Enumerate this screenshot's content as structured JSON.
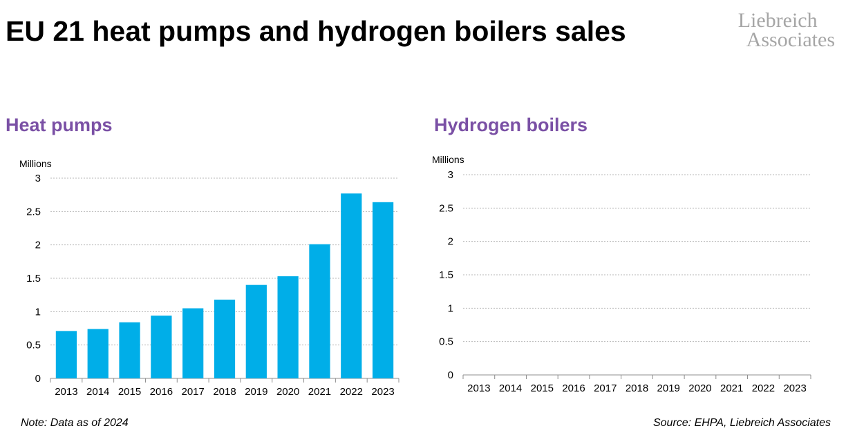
{
  "header": {
    "title": "EU 21 heat pumps and hydrogen boilers sales",
    "logo_line1": "Liebreich",
    "logo_line2": "Associates"
  },
  "colors": {
    "bar": "#00aee8",
    "panel_title": "#7a50a5",
    "gridline": "#b7b7b7",
    "axis": "#8c8c8c"
  },
  "chart_data": [
    {
      "type": "bar",
      "title": "Heat pumps",
      "unit_label": "Millions",
      "categories": [
        "2013",
        "2014",
        "2015",
        "2016",
        "2017",
        "2018",
        "2019",
        "2020",
        "2021",
        "2022",
        "2023"
      ],
      "values": [
        0.71,
        0.74,
        0.84,
        0.94,
        1.05,
        1.18,
        1.4,
        1.53,
        2.01,
        2.77,
        2.64
      ],
      "yticks": [
        "0",
        "0.5",
        "1",
        "1.5",
        "2",
        "2.5",
        "3"
      ],
      "ylim": [
        0,
        3
      ],
      "grid": true
    },
    {
      "type": "bar",
      "title": "Hydrogen boilers",
      "unit_label": "Millions",
      "categories": [
        "2013",
        "2014",
        "2015",
        "2016",
        "2017",
        "2018",
        "2019",
        "2020",
        "2021",
        "2022",
        "2023"
      ],
      "values": [
        0,
        0,
        0,
        0,
        0,
        0,
        0,
        0,
        0,
        0,
        0
      ],
      "yticks": [
        "0",
        "0.5",
        "1",
        "1.5",
        "2",
        "2.5",
        "3"
      ],
      "ylim": [
        0,
        3
      ],
      "grid": true
    }
  ],
  "footer": {
    "note": "Note: Data as of 2024",
    "source": "Source: EHPA, Liebreich Associates"
  }
}
